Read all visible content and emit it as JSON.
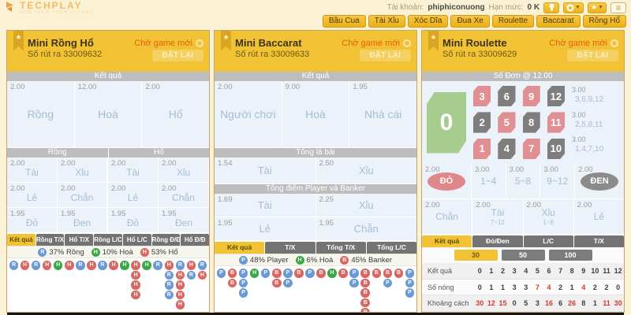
{
  "topbar": {
    "brand": "TECHPLAY",
    "tagline": "OUR TECH-YOUR FUTURE",
    "account_label": "Tài khoản:",
    "account_name": "phiphiconuong",
    "limit_label": "Hạn mức:",
    "limit_value": "0 K"
  },
  "nav": {
    "items": [
      "Bầu Cua",
      "Tài Xỉu",
      "Xóc Dĩa",
      "Đua Xe",
      "Roulette",
      "Baccarat",
      "Rồng Hổ"
    ]
  },
  "common": {
    "status": "Chờ game mới",
    "rebet": "ĐẶT LẠI",
    "draw_label": "Số rút ra",
    "result_header": "Kết quả"
  },
  "colors": {
    "blue": "#6A9AD6",
    "red": "#DB6661",
    "green": "#39A845",
    "tile_red": "#E08F92",
    "tile_gray": "#7E7E7E",
    "tile_green": "#A6CD8E",
    "oval_red": "#DF878B",
    "oval_gray": "#8B8B8B"
  },
  "bead_legend": {
    "R": {
      "letter": "R",
      "color": "blue"
    },
    "H": {
      "letter": "H",
      "color": "red"
    },
    "G": {
      "letter": "H",
      "color": "green"
    },
    "P": {
      "letter": "P",
      "color": "blue"
    },
    "B": {
      "letter": "B",
      "color": "red"
    }
  },
  "dragon": {
    "title": "Mini Rồng Hổ",
    "draw_number": "33009632",
    "main_bets": [
      {
        "odds": "2.00",
        "label": "Rồng"
      },
      {
        "odds": "12.00",
        "label": "Hoà"
      },
      {
        "odds": "2.00",
        "label": "Hổ"
      }
    ],
    "group_headers": [
      "Rồng",
      "Hổ"
    ],
    "grid_rows": [
      [
        {
          "odds": "2.00",
          "label": "Tài"
        },
        {
          "odds": "2.00",
          "label": "Xỉu"
        },
        {
          "odds": "2.00",
          "label": "Tài"
        },
        {
          "odds": "2.00",
          "label": "Xỉu"
        }
      ],
      [
        {
          "odds": "2.00",
          "label": "Lẻ"
        },
        {
          "odds": "2.00",
          "label": "Chẵn"
        },
        {
          "odds": "2.00",
          "label": "Lẻ"
        },
        {
          "odds": "2.00",
          "label": "Chẵn"
        }
      ],
      [
        {
          "odds": "1.95",
          "label": "Đỏ"
        },
        {
          "odds": "1.95",
          "label": "Đen"
        },
        {
          "odds": "1.95",
          "label": "Đỏ"
        },
        {
          "odds": "1.95",
          "label": "Đen"
        }
      ]
    ],
    "tabs": [
      "Kết quả",
      "Rồng T/X",
      "Hổ T/X",
      "Rồng L/C",
      "Hổ L/C",
      "Rồng Đ/Đ",
      "Hổ Đ/Đ"
    ],
    "active_tab": 0,
    "stats": [
      {
        "letter": "R",
        "color": "blue",
        "text": "37% Rồng"
      },
      {
        "letter": "H",
        "color": "green",
        "text": "10% Hoà"
      },
      {
        "letter": "H",
        "color": "red",
        "text": "53% Hổ"
      }
    ],
    "beads": [
      [
        "R"
      ],
      [
        "H"
      ],
      [
        "R"
      ],
      [
        "H"
      ],
      [
        "G"
      ],
      [
        "H"
      ],
      [
        "R"
      ],
      [
        "H"
      ],
      [
        "R"
      ],
      [
        "H"
      ],
      [
        "G"
      ],
      [
        "H",
        "H",
        "H",
        "H"
      ],
      [
        "G"
      ],
      [
        "R"
      ],
      [
        "H",
        "R",
        "R",
        "R"
      ],
      [
        "R",
        "H",
        "H",
        "H",
        "H"
      ],
      [
        "H",
        "R"
      ],
      [
        "R",
        "H"
      ]
    ]
  },
  "baccarat": {
    "title": "Mini Baccarat",
    "draw_number": "33009633",
    "main_bets": [
      {
        "odds": "2.00",
        "label": "Người chơi"
      },
      {
        "odds": "9.00",
        "label": "Hoà"
      },
      {
        "odds": "1.95",
        "label": "Nhà cái"
      }
    ],
    "section2": "Tổng lá bài",
    "section2_bets": [
      {
        "odds": "1.54",
        "label": "Tài"
      },
      {
        "odds": "2.50",
        "label": "Xỉu"
      }
    ],
    "section3": "Tổng điểm Player và Banker",
    "section3_rows": [
      [
        {
          "odds": "1.69",
          "label": "Tài"
        },
        {
          "odds": "2.25",
          "label": "Xỉu"
        }
      ],
      [
        {
          "odds": "1.95",
          "label": "Lẻ"
        },
        {
          "odds": "1.95",
          "label": "Chẵn"
        }
      ]
    ],
    "tabs": [
      "Kết quả",
      "T/X",
      "Tổng T/X",
      "Tổng L/C"
    ],
    "active_tab": 0,
    "stats": [
      {
        "letter": "P",
        "color": "blue",
        "text": "48% Player"
      },
      {
        "letter": "H",
        "color": "green",
        "text": "6% Hoà"
      },
      {
        "letter": "B",
        "color": "red",
        "text": "45% Banker"
      }
    ],
    "beads": [
      [
        "P"
      ],
      [
        "B",
        "B"
      ],
      [
        "P",
        "P",
        "P"
      ],
      [
        "G"
      ],
      [
        "P"
      ],
      [
        "B",
        "B"
      ],
      [
        "P",
        "P"
      ],
      [
        "B"
      ],
      [
        "P"
      ],
      [
        "B"
      ],
      [
        "G"
      ],
      [
        "B"
      ],
      [
        "P",
        "P"
      ],
      [
        "B",
        "B",
        "B",
        "B",
        "B"
      ],
      [
        "B"
      ],
      [
        "B",
        "P"
      ],
      [
        "B"
      ],
      [
        "P",
        "P",
        "P"
      ]
    ]
  },
  "roulette": {
    "title": "Mini Roulette",
    "draw_number": "33009629",
    "section1": "Số Đơn @ 12.00",
    "zero": "0",
    "tile_rows": [
      {
        "numbers": [
          {
            "n": "3",
            "c": "red"
          },
          {
            "n": "6",
            "c": "gray"
          },
          {
            "n": "9",
            "c": "red"
          },
          {
            "n": "12",
            "c": "gray"
          }
        ],
        "odds": "3.00",
        "group": "3,6,9,12"
      },
      {
        "numbers": [
          {
            "n": "2",
            "c": "gray"
          },
          {
            "n": "5",
            "c": "red"
          },
          {
            "n": "8",
            "c": "gray"
          },
          {
            "n": "11",
            "c": "red"
          }
        ],
        "odds": "3.00",
        "group": "2,5,8,11"
      },
      {
        "numbers": [
          {
            "n": "1",
            "c": "red"
          },
          {
            "n": "4",
            "c": "gray"
          },
          {
            "n": "7",
            "c": "red"
          },
          {
            "n": "10",
            "c": "gray"
          }
        ],
        "odds": "3.00",
        "group": "1,4,7,10"
      }
    ],
    "outside_row1": [
      {
        "odds": "2.00",
        "label": "ĐỎ",
        "style": "red-oval",
        "wide": true
      },
      {
        "odds": "3.00",
        "label": "1~4"
      },
      {
        "odds": "3.00",
        "label": "5~8"
      },
      {
        "odds": "3.00",
        "label": "9~12"
      },
      {
        "odds": "2.00",
        "label": "ĐEN",
        "style": "gray-oval",
        "wide": true
      }
    ],
    "outside_row2": [
      {
        "odds": "2.00",
        "label": "Chẵn"
      },
      {
        "odds": "2.00",
        "label": "Tài",
        "sub": "7~12"
      },
      {
        "odds": "2.00",
        "label": "Xỉu",
        "sub": "1~6"
      },
      {
        "odds": "2.00",
        "label": "Lẻ"
      }
    ],
    "tabs": [
      "Kết quả",
      "Đỏ/Đen",
      "L/C",
      "T/X"
    ],
    "active_tab": 0,
    "chips": [
      {
        "label": "30",
        "active": true
      },
      {
        "label": "50",
        "active": false
      },
      {
        "label": "100",
        "active": false
      }
    ],
    "table": {
      "rows": [
        {
          "label": "Kết quả",
          "values": [
            {
              "v": "0"
            },
            {
              "v": "1"
            },
            {
              "v": "2"
            },
            {
              "v": "3"
            },
            {
              "v": "4"
            },
            {
              "v": "5"
            },
            {
              "v": "6"
            },
            {
              "v": "7"
            },
            {
              "v": "8"
            },
            {
              "v": "9"
            },
            {
              "v": "10"
            },
            {
              "v": "11"
            },
            {
              "v": "12"
            }
          ]
        },
        {
          "label": "Số nóng",
          "values": [
            {
              "v": "0"
            },
            {
              "v": "1"
            },
            {
              "v": "1"
            },
            {
              "v": "3"
            },
            {
              "v": "3"
            },
            {
              "v": "7",
              "hot": true
            },
            {
              "v": "4",
              "hot": true
            },
            {
              "v": "2"
            },
            {
              "v": "1"
            },
            {
              "v": "4",
              "hot": true
            },
            {
              "v": "2"
            },
            {
              "v": "2"
            },
            {
              "v": "0"
            }
          ]
        },
        {
          "label": "Khoảng cách",
          "values": [
            {
              "v": "30",
              "hot": true
            },
            {
              "v": "12",
              "hot": true
            },
            {
              "v": "15",
              "hot": true
            },
            {
              "v": "0"
            },
            {
              "v": "5"
            },
            {
              "v": "3"
            },
            {
              "v": "16",
              "hot": true
            },
            {
              "v": "6"
            },
            {
              "v": "26",
              "hot": true
            },
            {
              "v": "8"
            },
            {
              "v": "1"
            },
            {
              "v": "11",
              "hot": true
            },
            {
              "v": "30",
              "hot": true
            }
          ]
        }
      ]
    }
  }
}
